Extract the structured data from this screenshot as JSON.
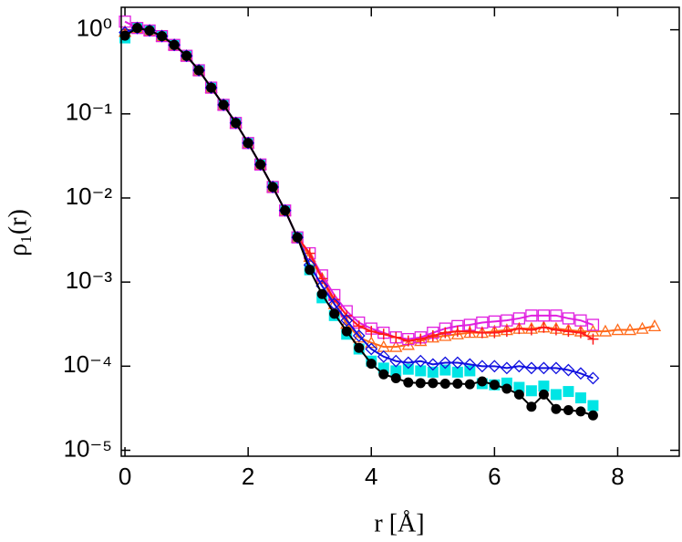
{
  "chart_data": {
    "type": "line",
    "x_label": "r [Å]",
    "y_label": "ρ₁(r)",
    "xlim": [
      -0.06,
      9
    ],
    "ylim": [
      8.5e-06,
      1.85
    ],
    "log_y": true,
    "xticks": [
      0,
      2,
      4,
      6,
      8
    ],
    "yticks": [
      {
        "value": 1,
        "label": "10⁰"
      },
      {
        "value": 0.1,
        "label": "10⁻¹"
      },
      {
        "value": 0.01,
        "label": "10⁻²"
      },
      {
        "value": 0.001,
        "label": "10⁻³"
      },
      {
        "value": 0.0001,
        "label": "10⁻⁴"
      },
      {
        "value": 1e-05,
        "label": "10⁻⁵"
      }
    ],
    "series": [
      {
        "color": "#00e5e5",
        "marker": "filled-square",
        "line": false,
        "x": [
          0,
          0.2,
          0.4,
          0.6,
          0.8,
          1,
          1.2,
          1.4,
          1.6,
          1.8,
          2,
          2.2,
          2.4,
          2.6,
          2.8,
          3,
          3.2,
          3.4,
          3.6,
          3.8,
          4,
          4.2,
          4.4,
          4.6,
          4.8,
          5,
          5.2,
          5.4,
          5.6,
          5.8,
          6,
          6.2,
          6.4,
          6.6,
          6.8,
          7,
          7.2,
          7.4,
          7.6
        ],
        "values": [
          0.8,
          1.05,
          0.98,
          0.84,
          0.66,
          0.49,
          0.33,
          0.205,
          0.128,
          0.078,
          0.045,
          0.025,
          0.0135,
          0.0071,
          0.0034,
          0.0014,
          0.00065,
          0.0004,
          0.00024,
          0.00016,
          0.000115,
          9.5e-05,
          8.8e-05,
          9.2e-05,
          8.8e-05,
          8.5e-05,
          9e-05,
          8.5e-05,
          8.8e-05,
          6.2e-05,
          6e-05,
          6.3e-05,
          5.6e-05,
          5.1e-05,
          5.8e-05,
          4.6e-05,
          5e-05,
          4.2e-05,
          3.4e-05
        ]
      },
      {
        "color": "#ff6a1a",
        "marker": "open-triangle",
        "line": true,
        "x": [
          0,
          0.2,
          0.4,
          0.6,
          0.8,
          1,
          1.2,
          1.4,
          1.6,
          1.8,
          2,
          2.2,
          2.4,
          2.6,
          2.8,
          3,
          3.2,
          3.4,
          3.6,
          3.8,
          4,
          4.2,
          4.4,
          4.6,
          4.8,
          5,
          5.2,
          5.4,
          5.6,
          5.8,
          6,
          6.2,
          6.4,
          6.6,
          6.8,
          7,
          7.2,
          7.4,
          7.6,
          7.8,
          8,
          8.2,
          8.4,
          8.6
        ],
        "values": [
          0.95,
          1.05,
          0.98,
          0.84,
          0.66,
          0.49,
          0.33,
          0.205,
          0.128,
          0.078,
          0.045,
          0.025,
          0.0135,
          0.0071,
          0.0034,
          0.002,
          0.0011,
          0.00055,
          0.00032,
          0.00022,
          0.00019,
          0.00017,
          0.00017,
          0.00018,
          0.0002,
          0.00022,
          0.00023,
          0.00024,
          0.00025,
          0.00025,
          0.00026,
          0.00027,
          0.00028,
          0.00028,
          0.00029,
          0.00028,
          0.00027,
          0.00026,
          0.00026,
          0.00026,
          0.00027,
          0.00027,
          0.00028,
          0.0003
        ]
      },
      {
        "color": "#e020e0",
        "marker": "open-square",
        "line": true,
        "x": [
          0,
          0.2,
          0.4,
          0.6,
          0.8,
          1,
          1.2,
          1.4,
          1.6,
          1.8,
          2,
          2.2,
          2.4,
          2.6,
          2.8,
          3,
          3.2,
          3.4,
          3.6,
          3.8,
          4,
          4.2,
          4.4,
          4.6,
          4.8,
          5,
          5.2,
          5.4,
          5.6,
          5.8,
          6,
          6.2,
          6.4,
          6.6,
          6.8,
          7,
          7.2,
          7.4,
          7.6
        ],
        "values": [
          1.25,
          1.05,
          0.98,
          0.84,
          0.66,
          0.49,
          0.33,
          0.205,
          0.128,
          0.078,
          0.045,
          0.025,
          0.0135,
          0.0071,
          0.0034,
          0.0022,
          0.0012,
          0.0007,
          0.00045,
          0.00033,
          0.00028,
          0.00025,
          0.00022,
          0.00021,
          0.00022,
          0.00025,
          0.00028,
          0.0003,
          0.00031,
          0.00033,
          0.00034,
          0.00035,
          0.00037,
          0.0004,
          0.0004,
          0.0004,
          0.00037,
          0.00035,
          0.00031
        ]
      },
      {
        "color": "#ff1a1a",
        "marker": "plus",
        "line": true,
        "x": [
          0,
          0.2,
          0.4,
          0.6,
          0.8,
          1,
          1.2,
          1.4,
          1.6,
          1.8,
          2,
          2.2,
          2.4,
          2.6,
          2.8,
          3,
          3.2,
          3.4,
          3.6,
          3.8,
          4,
          4.2,
          4.4,
          4.6,
          4.8,
          5,
          5.2,
          5.4,
          5.6,
          5.8,
          6,
          6.2,
          6.4,
          6.6,
          6.8,
          7,
          7.2,
          7.4,
          7.6
        ],
        "values": [
          0.93,
          1.05,
          0.98,
          0.84,
          0.66,
          0.49,
          0.33,
          0.205,
          0.128,
          0.078,
          0.045,
          0.025,
          0.0135,
          0.0071,
          0.0034,
          0.0022,
          0.0011,
          0.00062,
          0.0004,
          0.0003,
          0.00026,
          0.00024,
          0.00022,
          0.0002,
          0.00021,
          0.00023,
          0.00025,
          0.00026,
          0.00026,
          0.00025,
          0.00025,
          0.00026,
          0.00028,
          0.00027,
          0.00029,
          0.00027,
          0.00026,
          0.00025,
          0.00021
        ]
      },
      {
        "color": "#1010e0",
        "marker": "open-diamond",
        "line": true,
        "x": [
          0,
          0.2,
          0.4,
          0.6,
          0.8,
          1,
          1.2,
          1.4,
          1.6,
          1.8,
          2,
          2.2,
          2.4,
          2.6,
          2.8,
          3,
          3.2,
          3.4,
          3.6,
          3.8,
          4,
          4.2,
          4.4,
          4.6,
          4.8,
          5,
          5.2,
          5.4,
          5.6,
          5.8,
          6,
          6.2,
          6.4,
          6.6,
          6.8,
          7,
          7.2,
          7.4,
          7.6
        ],
        "values": [
          0.93,
          1.05,
          0.98,
          0.84,
          0.66,
          0.49,
          0.33,
          0.205,
          0.128,
          0.078,
          0.045,
          0.025,
          0.0135,
          0.0071,
          0.0034,
          0.0016,
          0.0009,
          0.00055,
          0.00035,
          0.00023,
          0.00016,
          0.00013,
          0.000115,
          0.00011,
          0.000115,
          0.000105,
          0.00011,
          0.00011,
          0.000105,
          0.0001,
          0.0001,
          9.5e-05,
          0.0001,
          9.5e-05,
          9.5e-05,
          9.5e-05,
          9e-05,
          8.2e-05,
          7.2e-05
        ]
      },
      {
        "color": "#000000",
        "marker": "filled-circle",
        "line": true,
        "x": [
          0,
          0.2,
          0.4,
          0.6,
          0.8,
          1,
          1.2,
          1.4,
          1.6,
          1.8,
          2,
          2.2,
          2.4,
          2.6,
          2.8,
          3,
          3.2,
          3.4,
          3.6,
          3.8,
          4,
          4.2,
          4.4,
          4.6,
          4.8,
          5,
          5.2,
          5.4,
          5.6,
          5.8,
          6,
          6.2,
          6.4,
          6.6,
          6.8,
          7,
          7.2,
          7.4,
          7.6
        ],
        "values": [
          0.85,
          1.05,
          0.98,
          0.84,
          0.66,
          0.49,
          0.33,
          0.205,
          0.128,
          0.078,
          0.045,
          0.025,
          0.0135,
          0.0071,
          0.0034,
          0.0014,
          0.00072,
          0.00042,
          0.00026,
          0.000165,
          0.000107,
          8e-05,
          7.2e-05,
          6.4e-05,
          6.3e-05,
          6.3e-05,
          6.2e-05,
          6.2e-05,
          6.1e-05,
          6.6e-05,
          6e-05,
          5.4e-05,
          4.6e-05,
          3.3e-05,
          4.6e-05,
          3.1e-05,
          3e-05,
          2.9e-05,
          2.6e-05
        ]
      }
    ]
  }
}
